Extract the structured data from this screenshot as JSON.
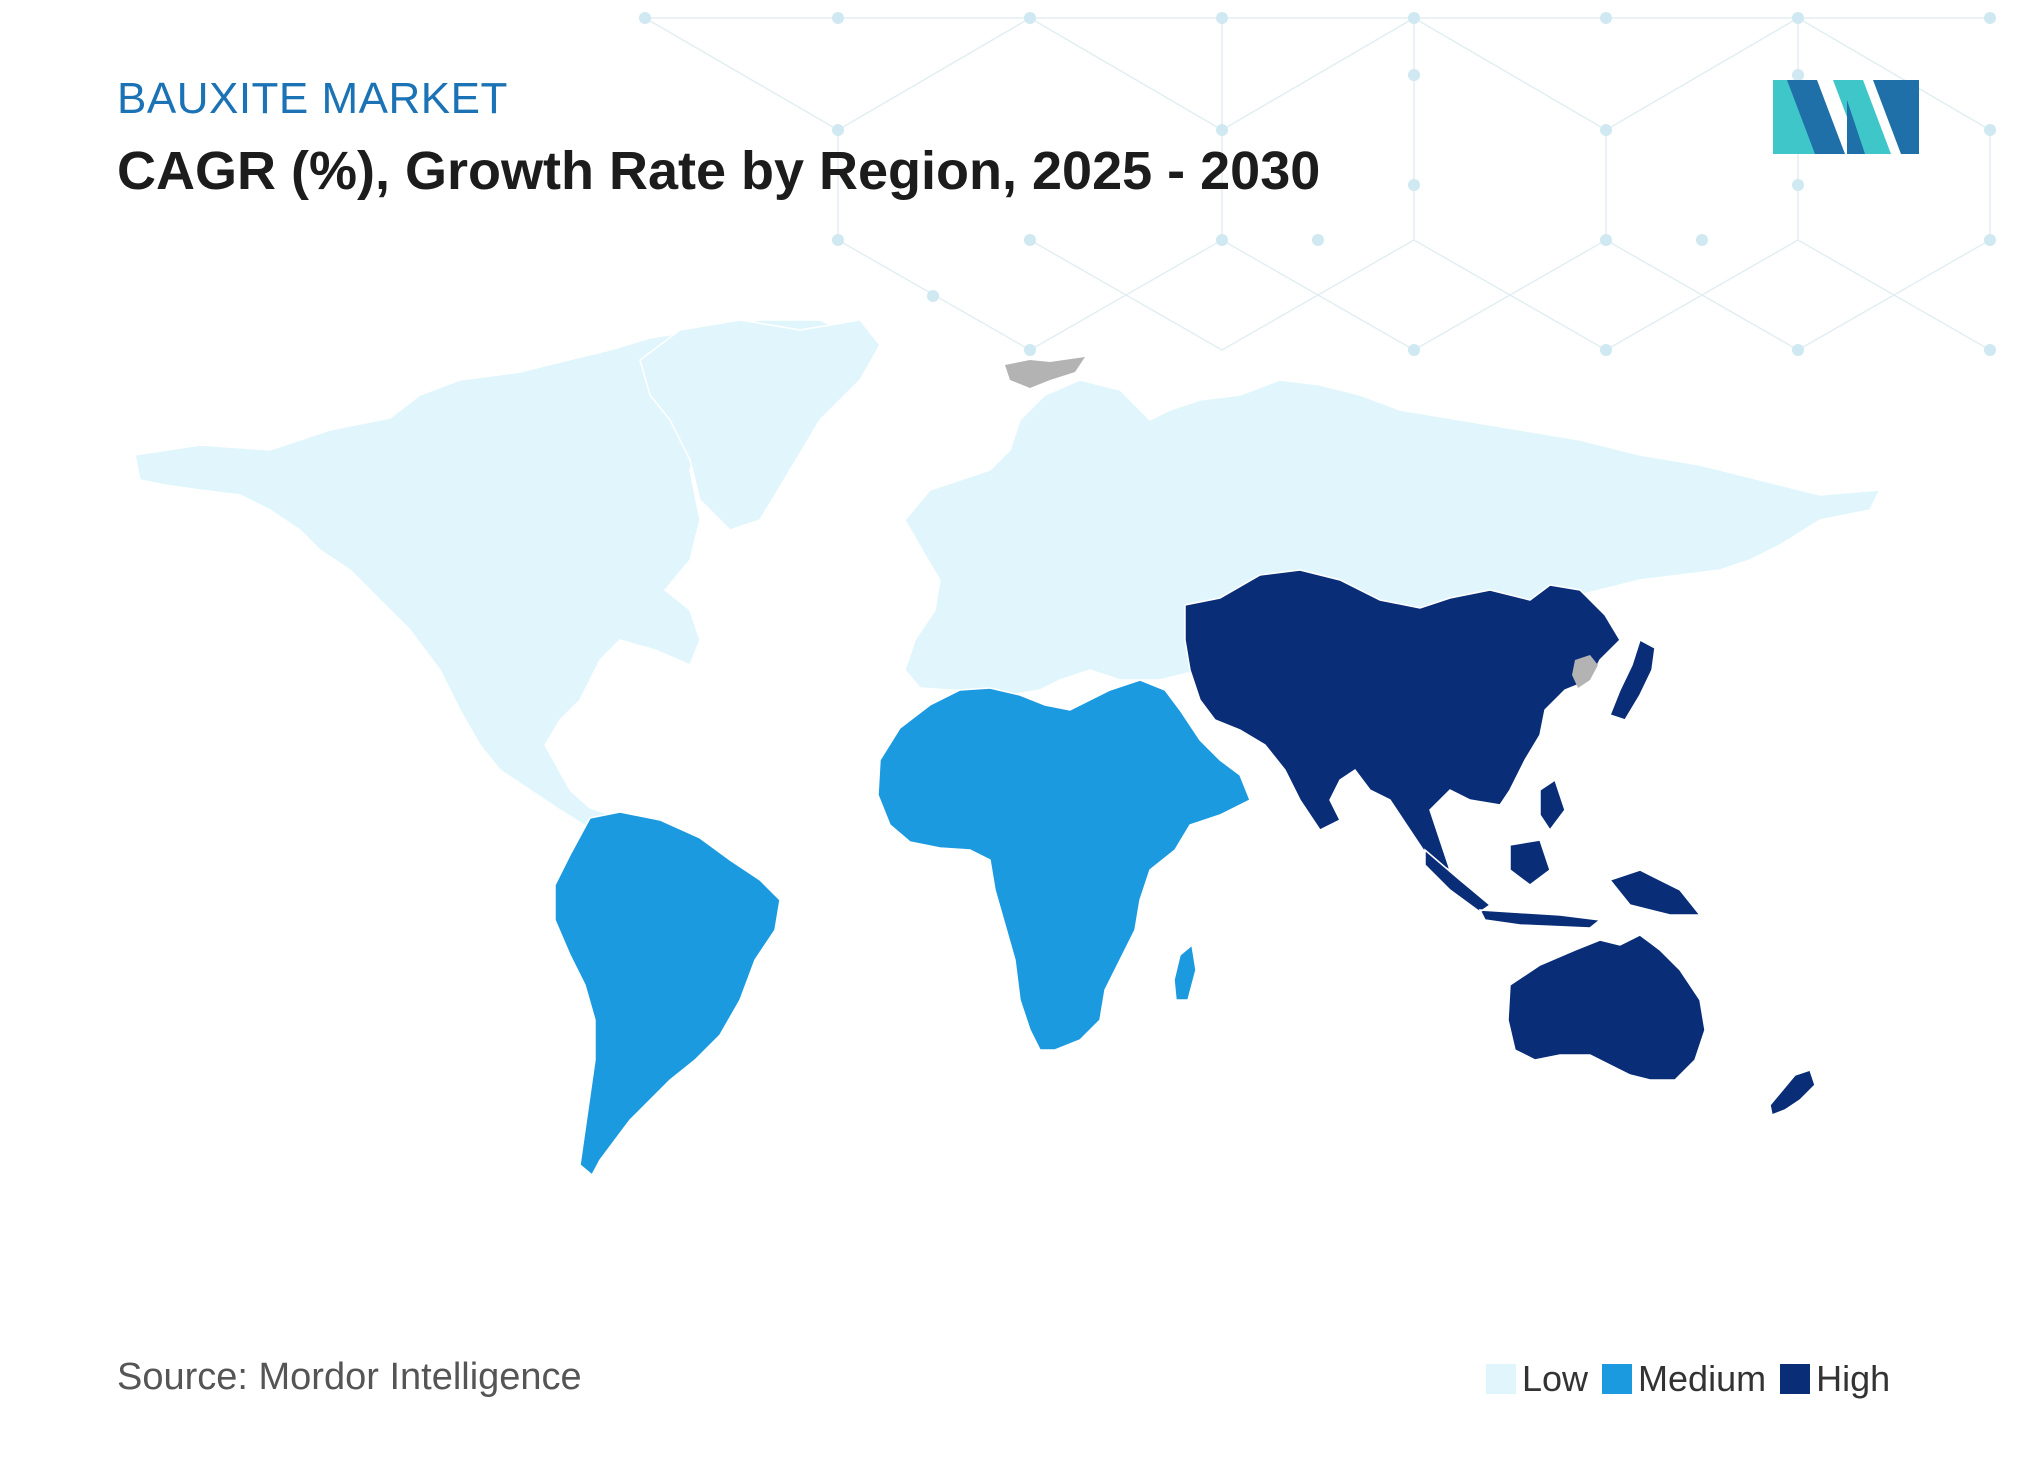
{
  "header": {
    "kicker": "BAUXITE MARKET",
    "title": "CAGR (%), Growth Rate by Region, 2025 - 2030"
  },
  "footer": {
    "source": "Source: Mordor Intelligence"
  },
  "legend": [
    {
      "label": "Low",
      "color": "#e0f6fc"
    },
    {
      "label": "Medium",
      "color": "#1b9ae0"
    },
    {
      "label": "High",
      "color": "#0a2d78"
    }
  ],
  "regions": [
    {
      "name": "North America",
      "level": "Low"
    },
    {
      "name": "Europe",
      "level": "Low"
    },
    {
      "name": "Russia",
      "level": "Low"
    },
    {
      "name": "South America",
      "level": "Medium"
    },
    {
      "name": "Africa",
      "level": "Medium"
    },
    {
      "name": "Middle East",
      "level": "Medium"
    },
    {
      "name": "Asia-Pacific",
      "level": "High"
    },
    {
      "name": "Australia",
      "level": "High"
    }
  ],
  "colors": {
    "no_data": "#b3b3b3",
    "brand_dark": "#1f6fa8",
    "brand_light": "#3ec6c8"
  },
  "icons": {
    "logo": "mordor-intelligence-logo"
  }
}
